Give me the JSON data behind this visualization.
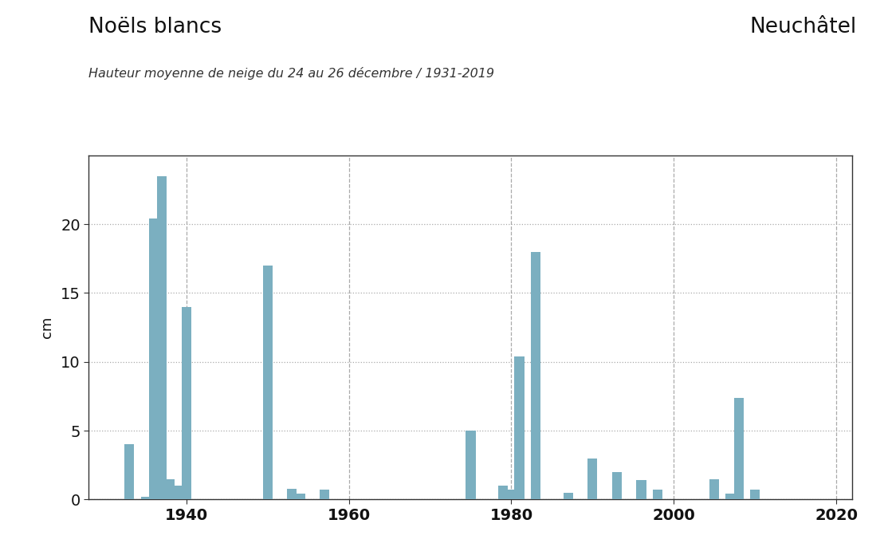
{
  "title_left": "Noëls blancs",
  "title_right": "Neuchâtel",
  "subtitle": "Hauteur moyenne de neige du 24 au 26 décembre / 1931-2019",
  "ylabel": "cm",
  "xlim": [
    1928,
    2022
  ],
  "ylim": [
    0,
    25
  ],
  "yticks": [
    0,
    5,
    10,
    15,
    20
  ],
  "xticks": [
    1940,
    1960,
    1980,
    2000,
    2020
  ],
  "bar_color": "#7BAFC0",
  "years": [
    1933,
    1935,
    1936,
    1937,
    1938,
    1939,
    1940,
    1950,
    1953,
    1954,
    1957,
    1975,
    1979,
    1980,
    1981,
    1983,
    1987,
    1990,
    1993,
    1996,
    1998,
    2005,
    2007,
    2008,
    2010
  ],
  "values": [
    4.0,
    0.2,
    20.4,
    23.5,
    1.5,
    1.0,
    14.0,
    17.0,
    0.8,
    0.4,
    0.7,
    5.0,
    1.0,
    0.7,
    10.4,
    18.0,
    0.5,
    3.0,
    2.0,
    1.4,
    0.7,
    1.5,
    0.4,
    7.4,
    0.7
  ],
  "title_fontsize": 19,
  "subtitle_fontsize": 11.5,
  "ylabel_fontsize": 13,
  "tick_fontsize": 14,
  "bar_width": 1.2
}
